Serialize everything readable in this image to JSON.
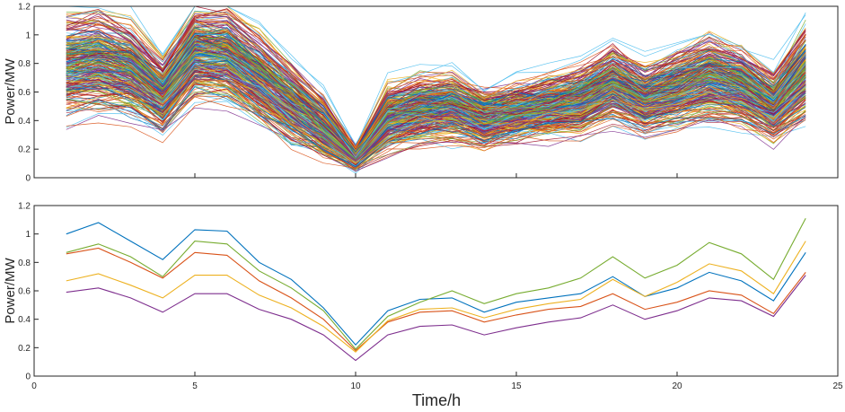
{
  "chart_data": [
    {
      "type": "line",
      "ylabel": "Power/MW",
      "xlabel": "",
      "xlim": [
        0,
        25
      ],
      "ylim": [
        0,
        1.2
      ],
      "xticks": [],
      "yticks": [
        0,
        0.2,
        0.4,
        0.6,
        0.8,
        1,
        1.2
      ],
      "ytick_labels": [
        "0",
        "0.2",
        "0.4",
        "0.6",
        "0.8",
        "1",
        "1.2"
      ],
      "grid": false,
      "x": [
        1,
        2,
        3,
        4,
        5,
        6,
        7,
        8,
        9,
        10,
        11,
        12,
        13,
        14,
        15,
        16,
        17,
        18,
        19,
        20,
        21,
        22,
        23,
        24
      ],
      "envelope_mean": [
        0.78,
        0.82,
        0.76,
        0.58,
        0.88,
        0.86,
        0.7,
        0.52,
        0.36,
        0.14,
        0.42,
        0.48,
        0.5,
        0.42,
        0.46,
        0.5,
        0.54,
        0.66,
        0.55,
        0.62,
        0.7,
        0.64,
        0.5,
        0.74
      ],
      "envelope_spread": [
        0.22,
        0.22,
        0.2,
        0.16,
        0.2,
        0.2,
        0.18,
        0.16,
        0.12,
        0.06,
        0.14,
        0.14,
        0.14,
        0.12,
        0.12,
        0.13,
        0.14,
        0.16,
        0.14,
        0.16,
        0.18,
        0.16,
        0.14,
        0.2
      ],
      "series_count": 300,
      "palette": [
        "#0072BD",
        "#D95319",
        "#EDB120",
        "#7E2F8E",
        "#77AC30",
        "#4DBEEE",
        "#A2142F"
      ]
    },
    {
      "type": "line",
      "ylabel": "Power/MW",
      "xlabel": "Time/h",
      "xlim": [
        0,
        25
      ],
      "ylim": [
        0,
        1.2
      ],
      "xticks": [
        0,
        5,
        10,
        15,
        20,
        25
      ],
      "xtick_labels": [
        "0",
        "5",
        "10",
        "15",
        "20",
        "25"
      ],
      "yticks": [
        0,
        0.2,
        0.4,
        0.6,
        0.8,
        1,
        1.2
      ],
      "ytick_labels": [
        "0",
        "0.2",
        "0.4",
        "0.6",
        "0.8",
        "1",
        "1.2"
      ],
      "grid": false,
      "x": [
        1,
        2,
        3,
        4,
        5,
        6,
        7,
        8,
        9,
        10,
        11,
        12,
        13,
        14,
        15,
        16,
        17,
        18,
        19,
        20,
        21,
        22,
        23,
        24
      ],
      "series": [
        {
          "color": "#0072BD",
          "values": [
            1.0,
            1.08,
            0.95,
            0.82,
            1.03,
            1.02,
            0.8,
            0.68,
            0.48,
            0.22,
            0.46,
            0.54,
            0.55,
            0.45,
            0.52,
            0.55,
            0.58,
            0.7,
            0.56,
            0.62,
            0.73,
            0.67,
            0.53,
            0.87
          ]
        },
        {
          "color": "#D95319",
          "values": [
            0.86,
            0.9,
            0.8,
            0.69,
            0.87,
            0.85,
            0.67,
            0.55,
            0.4,
            0.18,
            0.38,
            0.45,
            0.46,
            0.38,
            0.43,
            0.47,
            0.49,
            0.58,
            0.47,
            0.52,
            0.6,
            0.57,
            0.44,
            0.73
          ]
        },
        {
          "color": "#EDB120",
          "values": [
            0.67,
            0.72,
            0.64,
            0.55,
            0.71,
            0.71,
            0.57,
            0.48,
            0.35,
            0.17,
            0.39,
            0.47,
            0.48,
            0.41,
            0.47,
            0.51,
            0.54,
            0.68,
            0.56,
            0.66,
            0.79,
            0.74,
            0.58,
            0.95
          ]
        },
        {
          "color": "#7E2F8E",
          "values": [
            0.59,
            0.62,
            0.55,
            0.45,
            0.58,
            0.58,
            0.47,
            0.4,
            0.29,
            0.11,
            0.29,
            0.35,
            0.36,
            0.29,
            0.34,
            0.38,
            0.41,
            0.5,
            0.4,
            0.46,
            0.55,
            0.53,
            0.42,
            0.71
          ]
        },
        {
          "color": "#77AC30",
          "values": [
            0.87,
            0.93,
            0.84,
            0.7,
            0.95,
            0.93,
            0.74,
            0.62,
            0.46,
            0.19,
            0.42,
            0.52,
            0.6,
            0.51,
            0.58,
            0.62,
            0.69,
            0.84,
            0.69,
            0.78,
            0.94,
            0.86,
            0.68,
            1.11
          ]
        }
      ]
    }
  ]
}
